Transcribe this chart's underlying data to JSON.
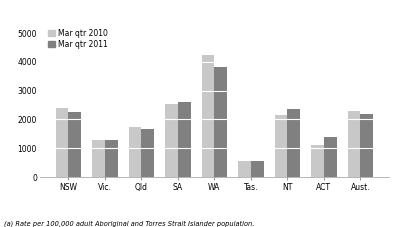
{
  "categories": [
    "NSW",
    "Vic.",
    "Qld",
    "SA",
    "WA",
    "Tas.",
    "NT",
    "ACT",
    "Aust."
  ],
  "mar_qtr_2010": [
    2400,
    1300,
    1750,
    2520,
    4250,
    560,
    2150,
    1120,
    2280
  ],
  "mar_qtr_2011": [
    2250,
    1300,
    1680,
    2620,
    3820,
    560,
    2370,
    1400,
    2180
  ],
  "color_2010": "#c8c8c8",
  "color_2011": "#808080",
  "legend_labels": [
    "Mar qtr 2010",
    "Mar qtr 2011"
  ],
  "yticks": [
    0,
    1000,
    2000,
    3000,
    4000,
    5000
  ],
  "ylim": [
    0,
    5200
  ],
  "footnote": "(a) Rate per 100,000 adult Aboriginal and Torres Strait Islander population.",
  "bar_width": 0.35
}
